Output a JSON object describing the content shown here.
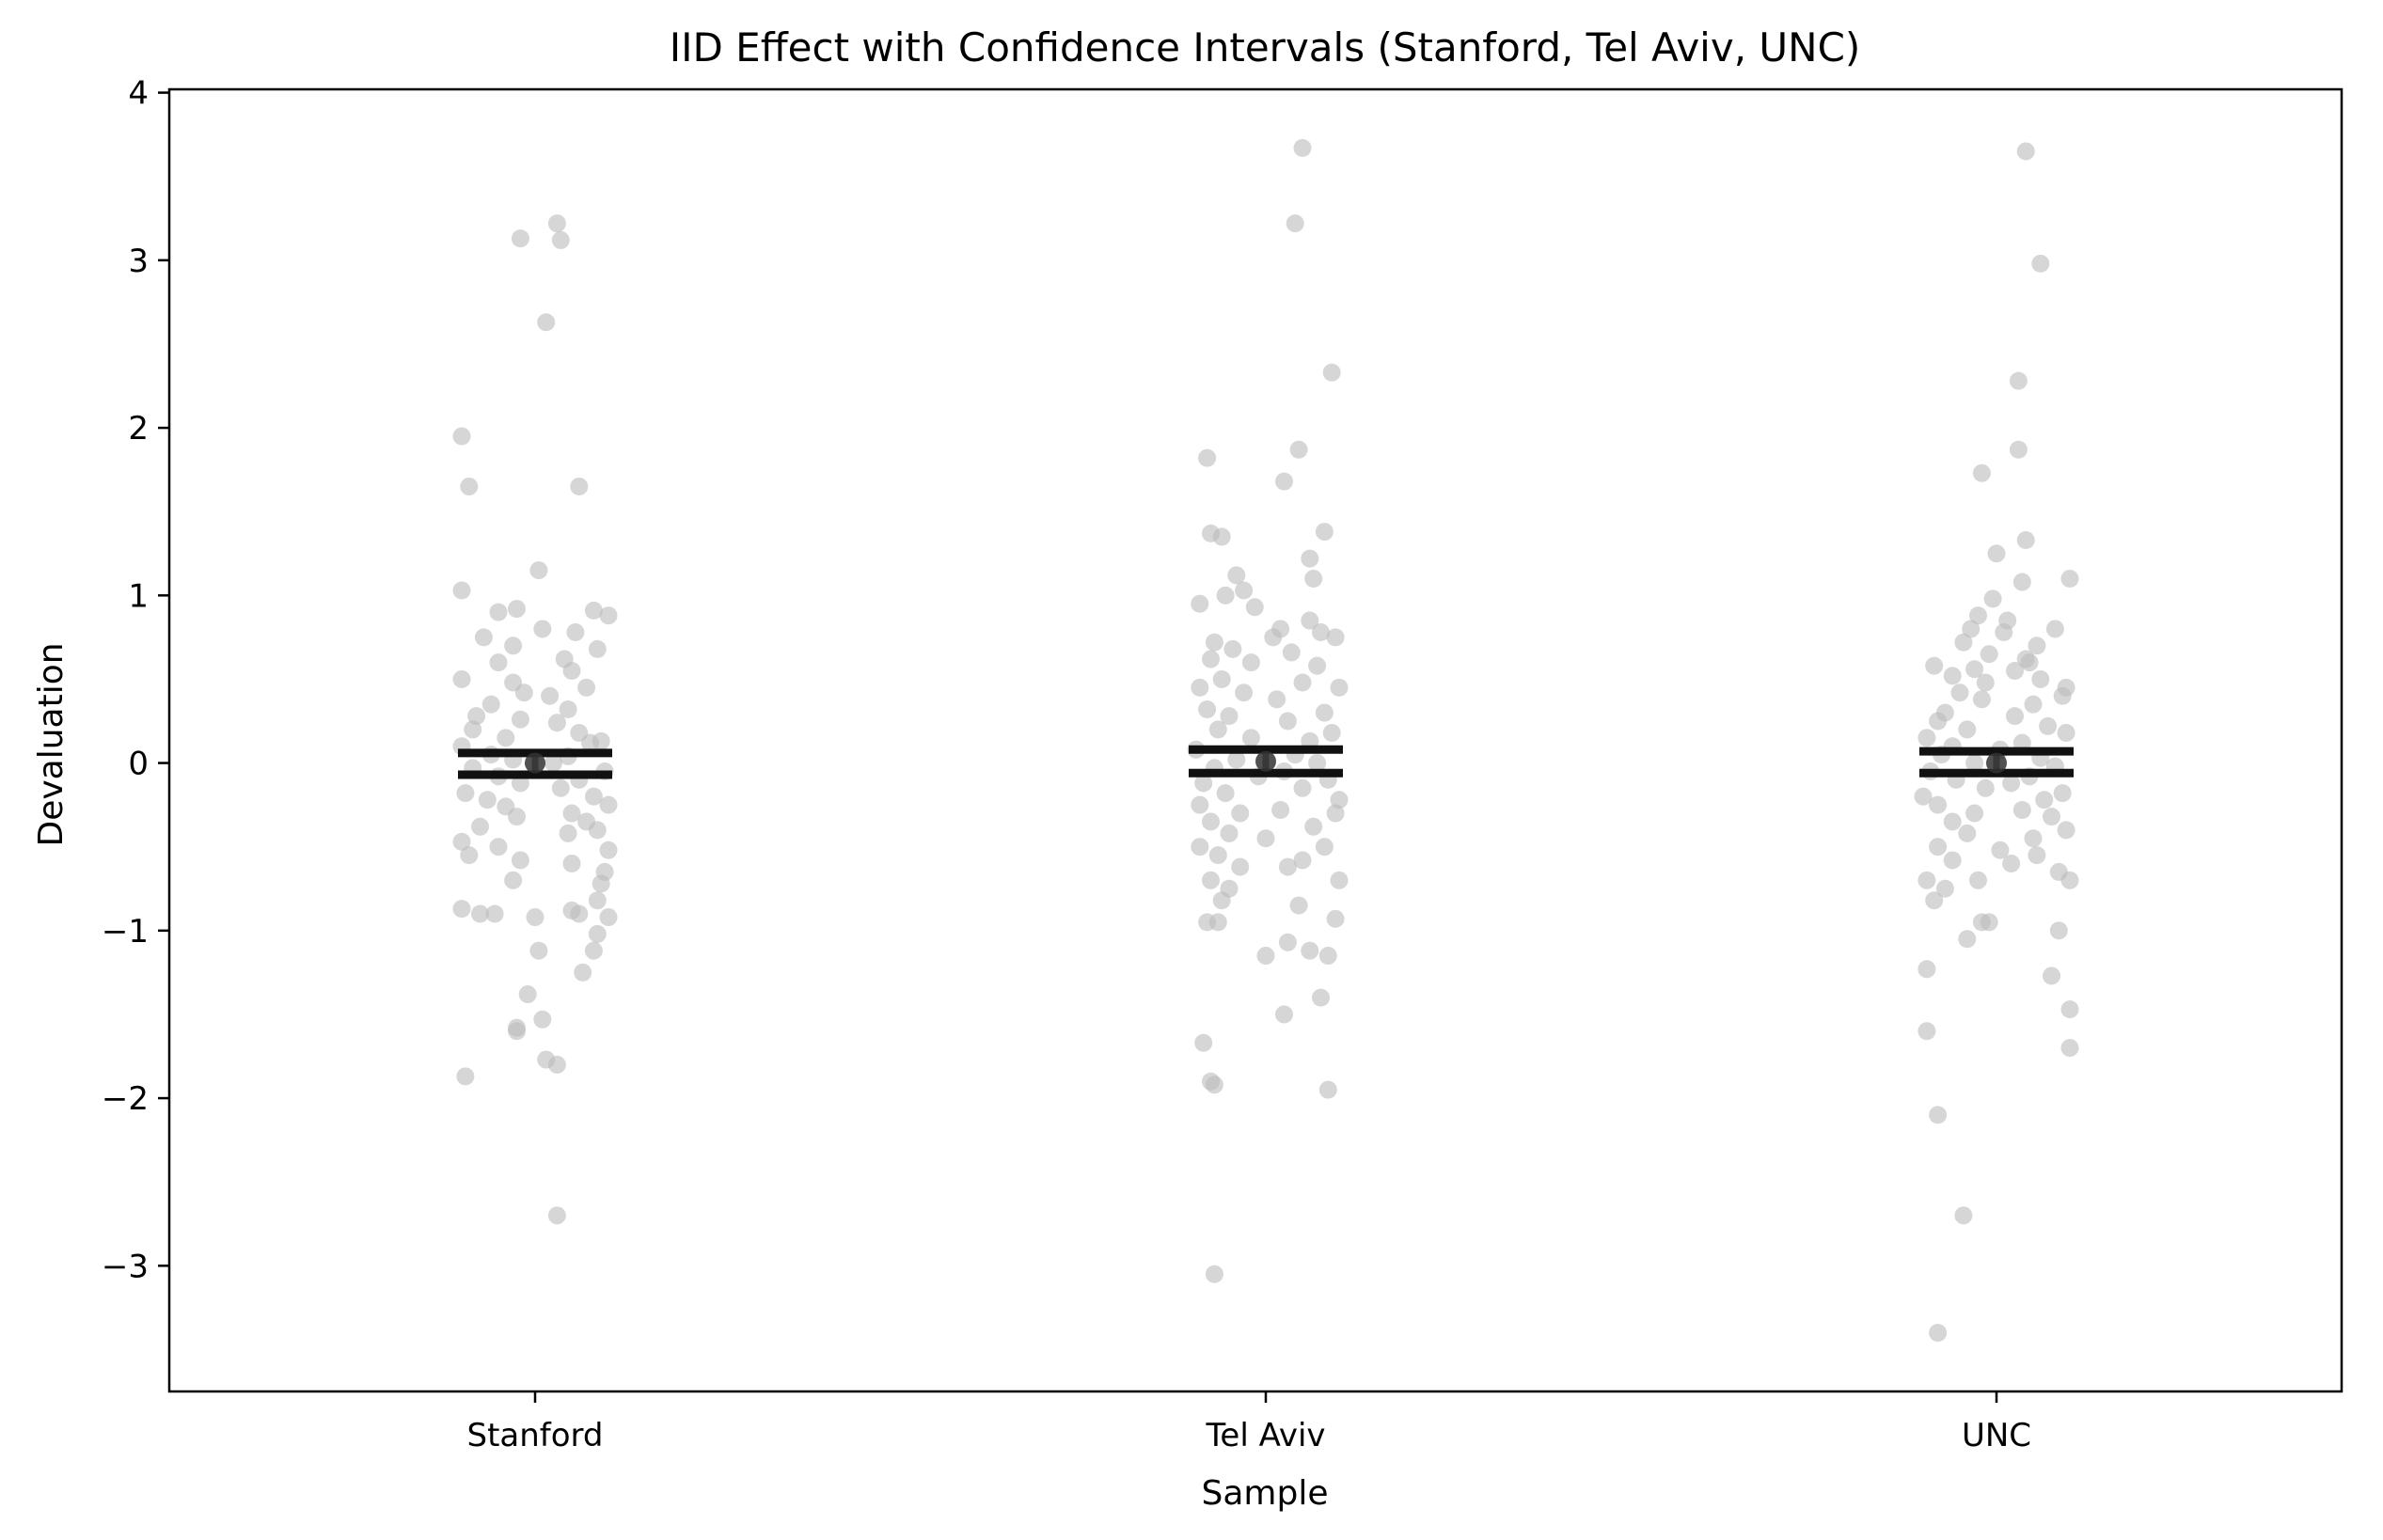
{
  "chart_data": {
    "type": "scatter",
    "title": "IID Effect with Confidence Intervals (Stanford, Tel Aviv, UNC)",
    "xlabel": "Sample",
    "ylabel": "Devaluation",
    "categories": [
      "Stanford",
      "Tel Aviv",
      "UNC"
    ],
    "y_ticks": [
      {
        "value": -3,
        "label": "−3"
      },
      {
        "value": -2,
        "label": "−2"
      },
      {
        "value": -1,
        "label": "−1"
      },
      {
        "value": 0,
        "label": "0"
      },
      {
        "value": 1,
        "label": "1"
      },
      {
        "value": 2,
        "label": "2"
      },
      {
        "value": 3,
        "label": "3"
      },
      {
        "value": 4,
        "label": "4"
      }
    ],
    "ylim": [
      -3.75,
      4.02
    ],
    "grid": false,
    "point_color": "#bdbdbd",
    "summary_color": "#111111",
    "series": [
      {
        "category": "Stanford",
        "mean": 0.0,
        "ci": [
          -0.07,
          0.06
        ],
        "points": [
          {
            "dx": -0.1,
            "y": 1.95
          },
          {
            "dx": -0.09,
            "y": 1.65
          },
          {
            "dx": 0.06,
            "y": 1.65
          },
          {
            "dx": -0.02,
            "y": 3.13
          },
          {
            "dx": 0.03,
            "y": 3.22
          },
          {
            "dx": 0.035,
            "y": 3.12
          },
          {
            "dx": 0.015,
            "y": 2.63
          },
          {
            "dx": -0.1,
            "y": 1.03
          },
          {
            "dx": 0.005,
            "y": 1.15
          },
          {
            "dx": 0.08,
            "y": 0.91
          },
          {
            "dx": 0.1,
            "y": 0.88
          },
          {
            "dx": -0.05,
            "y": 0.9
          },
          {
            "dx": -0.025,
            "y": 0.92
          },
          {
            "dx": 0.01,
            "y": 0.8
          },
          {
            "dx": 0.055,
            "y": 0.78
          },
          {
            "dx": -0.07,
            "y": 0.75
          },
          {
            "dx": 0.085,
            "y": 0.68
          },
          {
            "dx": -0.03,
            "y": 0.7
          },
          {
            "dx": 0.04,
            "y": 0.62
          },
          {
            "dx": -0.05,
            "y": 0.6
          },
          {
            "dx": 0.05,
            "y": 0.55
          },
          {
            "dx": -0.1,
            "y": 0.5
          },
          {
            "dx": -0.03,
            "y": 0.48
          },
          {
            "dx": 0.07,
            "y": 0.45
          },
          {
            "dx": -0.015,
            "y": 0.42
          },
          {
            "dx": 0.02,
            "y": 0.4
          },
          {
            "dx": -0.06,
            "y": 0.35
          },
          {
            "dx": 0.045,
            "y": 0.32
          },
          {
            "dx": -0.08,
            "y": 0.28
          },
          {
            "dx": -0.02,
            "y": 0.26
          },
          {
            "dx": 0.03,
            "y": 0.24
          },
          {
            "dx": -0.085,
            "y": 0.2
          },
          {
            "dx": 0.06,
            "y": 0.18
          },
          {
            "dx": -0.04,
            "y": 0.15
          },
          {
            "dx": 0.09,
            "y": 0.13
          },
          {
            "dx": -0.1,
            "y": 0.1
          },
          {
            "dx": 0.075,
            "y": 0.12
          },
          {
            "dx": -0.06,
            "y": 0.05
          },
          {
            "dx": 0.045,
            "y": 0.04
          },
          {
            "dx": -0.03,
            "y": 0.02
          },
          {
            "dx": 0.025,
            "y": 0.0
          },
          {
            "dx": -0.085,
            "y": -0.03
          },
          {
            "dx": 0.095,
            "y": -0.05
          },
          {
            "dx": -0.05,
            "y": -0.08
          },
          {
            "dx": 0.06,
            "y": -0.1
          },
          {
            "dx": -0.02,
            "y": -0.12
          },
          {
            "dx": 0.035,
            "y": -0.15
          },
          {
            "dx": -0.095,
            "y": -0.18
          },
          {
            "dx": 0.08,
            "y": -0.2
          },
          {
            "dx": -0.065,
            "y": -0.22
          },
          {
            "dx": 0.1,
            "y": -0.25
          },
          {
            "dx": -0.04,
            "y": -0.26
          },
          {
            "dx": 0.05,
            "y": -0.3
          },
          {
            "dx": -0.025,
            "y": -0.32
          },
          {
            "dx": 0.07,
            "y": -0.35
          },
          {
            "dx": -0.075,
            "y": -0.38
          },
          {
            "dx": 0.085,
            "y": -0.4
          },
          {
            "dx": 0.045,
            "y": -0.42
          },
          {
            "dx": -0.1,
            "y": -0.47
          },
          {
            "dx": -0.05,
            "y": -0.5
          },
          {
            "dx": 0.1,
            "y": -0.52
          },
          {
            "dx": -0.09,
            "y": -0.55
          },
          {
            "dx": -0.02,
            "y": -0.58
          },
          {
            "dx": 0.05,
            "y": -0.6
          },
          {
            "dx": 0.095,
            "y": -0.65
          },
          {
            "dx": -0.03,
            "y": -0.7
          },
          {
            "dx": 0.09,
            "y": -0.72
          },
          {
            "dx": 0.085,
            "y": -0.82
          },
          {
            "dx": -0.1,
            "y": -0.87
          },
          {
            "dx": -0.075,
            "y": -0.9
          },
          {
            "dx": -0.055,
            "y": -0.9
          },
          {
            "dx": 0.05,
            "y": -0.88
          },
          {
            "dx": 0.06,
            "y": -0.9
          },
          {
            "dx": 0.1,
            "y": -0.92
          },
          {
            "dx": 0.0,
            "y": -0.92
          },
          {
            "dx": 0.085,
            "y": -1.02
          },
          {
            "dx": 0.08,
            "y": -1.12
          },
          {
            "dx": 0.005,
            "y": -1.12
          },
          {
            "dx": 0.065,
            "y": -1.25
          },
          {
            "dx": -0.01,
            "y": -1.38
          },
          {
            "dx": 0.01,
            "y": -1.53
          },
          {
            "dx": -0.025,
            "y": -1.58
          },
          {
            "dx": -0.025,
            "y": -1.6
          },
          {
            "dx": 0.015,
            "y": -1.77
          },
          {
            "dx": 0.03,
            "y": -1.8
          },
          {
            "dx": -0.095,
            "y": -1.87
          },
          {
            "dx": 0.03,
            "y": -2.7
          }
        ]
      },
      {
        "category": "Tel Aviv",
        "mean": 0.01,
        "ci": [
          -0.06,
          0.08
        ],
        "points": [
          {
            "dx": 0.05,
            "y": 3.67
          },
          {
            "dx": 0.04,
            "y": 3.22
          },
          {
            "dx": 0.09,
            "y": 2.33
          },
          {
            "dx": -0.08,
            "y": 1.82
          },
          {
            "dx": 0.045,
            "y": 1.87
          },
          {
            "dx": 0.025,
            "y": 1.68
          },
          {
            "dx": -0.075,
            "y": 1.37
          },
          {
            "dx": -0.06,
            "y": 1.35
          },
          {
            "dx": 0.08,
            "y": 1.38
          },
          {
            "dx": 0.06,
            "y": 1.22
          },
          {
            "dx": -0.04,
            "y": 1.12
          },
          {
            "dx": 0.065,
            "y": 1.1
          },
          {
            "dx": -0.03,
            "y": 1.03
          },
          {
            "dx": -0.055,
            "y": 1.0
          },
          {
            "dx": -0.09,
            "y": 0.95
          },
          {
            "dx": -0.015,
            "y": 0.93
          },
          {
            "dx": 0.06,
            "y": 0.85
          },
          {
            "dx": 0.02,
            "y": 0.8
          },
          {
            "dx": 0.075,
            "y": 0.78
          },
          {
            "dx": -0.07,
            "y": 0.72
          },
          {
            "dx": 0.095,
            "y": 0.75
          },
          {
            "dx": 0.01,
            "y": 0.75
          },
          {
            "dx": -0.045,
            "y": 0.68
          },
          {
            "dx": 0.035,
            "y": 0.66
          },
          {
            "dx": -0.075,
            "y": 0.62
          },
          {
            "dx": -0.02,
            "y": 0.6
          },
          {
            "dx": 0.07,
            "y": 0.58
          },
          {
            "dx": -0.06,
            "y": 0.5
          },
          {
            "dx": 0.05,
            "y": 0.48
          },
          {
            "dx": -0.09,
            "y": 0.45
          },
          {
            "dx": 0.1,
            "y": 0.45
          },
          {
            "dx": -0.03,
            "y": 0.42
          },
          {
            "dx": 0.015,
            "y": 0.38
          },
          {
            "dx": -0.08,
            "y": 0.32
          },
          {
            "dx": 0.08,
            "y": 0.3
          },
          {
            "dx": -0.05,
            "y": 0.28
          },
          {
            "dx": 0.03,
            "y": 0.25
          },
          {
            "dx": -0.065,
            "y": 0.2
          },
          {
            "dx": 0.09,
            "y": 0.18
          },
          {
            "dx": -0.02,
            "y": 0.15
          },
          {
            "dx": 0.06,
            "y": 0.13
          },
          {
            "dx": -0.095,
            "y": 0.08
          },
          {
            "dx": 0.04,
            "y": 0.05
          },
          {
            "dx": -0.04,
            "y": 0.02
          },
          {
            "dx": 0.07,
            "y": 0.0
          },
          {
            "dx": -0.07,
            "y": -0.03
          },
          {
            "dx": 0.025,
            "y": -0.05
          },
          {
            "dx": -0.01,
            "y": -0.08
          },
          {
            "dx": 0.085,
            "y": -0.1
          },
          {
            "dx": -0.085,
            "y": -0.12
          },
          {
            "dx": 0.05,
            "y": -0.15
          },
          {
            "dx": -0.055,
            "y": -0.18
          },
          {
            "dx": 0.1,
            "y": -0.22
          },
          {
            "dx": -0.09,
            "y": -0.25
          },
          {
            "dx": 0.02,
            "y": -0.28
          },
          {
            "dx": -0.035,
            "y": -0.3
          },
          {
            "dx": 0.095,
            "y": -0.3
          },
          {
            "dx": -0.075,
            "y": -0.35
          },
          {
            "dx": 0.065,
            "y": -0.38
          },
          {
            "dx": -0.05,
            "y": -0.42
          },
          {
            "dx": 0.0,
            "y": -0.45
          },
          {
            "dx": -0.09,
            "y": -0.5
          },
          {
            "dx": 0.08,
            "y": -0.5
          },
          {
            "dx": -0.065,
            "y": -0.55
          },
          {
            "dx": 0.05,
            "y": -0.58
          },
          {
            "dx": -0.035,
            "y": -0.62
          },
          {
            "dx": 0.03,
            "y": -0.62
          },
          {
            "dx": -0.075,
            "y": -0.7
          },
          {
            "dx": 0.1,
            "y": -0.7
          },
          {
            "dx": -0.05,
            "y": -0.75
          },
          {
            "dx": -0.06,
            "y": -0.82
          },
          {
            "dx": 0.045,
            "y": -0.85
          },
          {
            "dx": 0.095,
            "y": -0.93
          },
          {
            "dx": -0.08,
            "y": -0.95
          },
          {
            "dx": -0.065,
            "y": -0.95
          },
          {
            "dx": 0.03,
            "y": -1.07
          },
          {
            "dx": 0.06,
            "y": -1.12
          },
          {
            "dx": 0.085,
            "y": -1.15
          },
          {
            "dx": 0.0,
            "y": -1.15
          },
          {
            "dx": 0.075,
            "y": -1.4
          },
          {
            "dx": 0.025,
            "y": -1.5
          },
          {
            "dx": -0.085,
            "y": -1.67
          },
          {
            "dx": -0.075,
            "y": -1.9
          },
          {
            "dx": -0.07,
            "y": -1.92
          },
          {
            "dx": 0.085,
            "y": -1.95
          },
          {
            "dx": -0.07,
            "y": -3.05
          }
        ]
      },
      {
        "category": "UNC",
        "mean": 0.0,
        "ci": [
          -0.06,
          0.07
        ],
        "points": [
          {
            "dx": 0.04,
            "y": 3.65
          },
          {
            "dx": 0.06,
            "y": 2.98
          },
          {
            "dx": 0.03,
            "y": 2.28
          },
          {
            "dx": 0.03,
            "y": 1.87
          },
          {
            "dx": -0.02,
            "y": 1.73
          },
          {
            "dx": 0.04,
            "y": 1.33
          },
          {
            "dx": 0.0,
            "y": 1.25
          },
          {
            "dx": 0.1,
            "y": 1.1
          },
          {
            "dx": 0.035,
            "y": 1.08
          },
          {
            "dx": -0.005,
            "y": 0.98
          },
          {
            "dx": -0.025,
            "y": 0.88
          },
          {
            "dx": 0.015,
            "y": 0.85
          },
          {
            "dx": 0.08,
            "y": 0.8
          },
          {
            "dx": -0.035,
            "y": 0.8
          },
          {
            "dx": 0.01,
            "y": 0.78
          },
          {
            "dx": -0.045,
            "y": 0.72
          },
          {
            "dx": 0.055,
            "y": 0.7
          },
          {
            "dx": -0.01,
            "y": 0.65
          },
          {
            "dx": 0.04,
            "y": 0.62
          },
          {
            "dx": 0.045,
            "y": 0.6
          },
          {
            "dx": -0.085,
            "y": 0.58
          },
          {
            "dx": -0.03,
            "y": 0.56
          },
          {
            "dx": 0.025,
            "y": 0.55
          },
          {
            "dx": -0.06,
            "y": 0.52
          },
          {
            "dx": 0.06,
            "y": 0.5
          },
          {
            "dx": -0.015,
            "y": 0.48
          },
          {
            "dx": 0.095,
            "y": 0.45
          },
          {
            "dx": -0.05,
            "y": 0.42
          },
          {
            "dx": 0.09,
            "y": 0.4
          },
          {
            "dx": -0.02,
            "y": 0.38
          },
          {
            "dx": 0.05,
            "y": 0.35
          },
          {
            "dx": -0.07,
            "y": 0.3
          },
          {
            "dx": 0.025,
            "y": 0.28
          },
          {
            "dx": -0.08,
            "y": 0.25
          },
          {
            "dx": 0.07,
            "y": 0.22
          },
          {
            "dx": -0.04,
            "y": 0.2
          },
          {
            "dx": 0.095,
            "y": 0.18
          },
          {
            "dx": -0.095,
            "y": 0.15
          },
          {
            "dx": 0.035,
            "y": 0.12
          },
          {
            "dx": -0.06,
            "y": 0.1
          },
          {
            "dx": 0.005,
            "y": 0.08
          },
          {
            "dx": -0.075,
            "y": 0.05
          },
          {
            "dx": 0.06,
            "y": 0.03
          },
          {
            "dx": -0.03,
            "y": 0.0
          },
          {
            "dx": 0.08,
            "y": -0.02
          },
          {
            "dx": -0.09,
            "y": -0.05
          },
          {
            "dx": 0.045,
            "y": -0.08
          },
          {
            "dx": -0.055,
            "y": -0.1
          },
          {
            "dx": 0.02,
            "y": -0.12
          },
          {
            "dx": -0.015,
            "y": -0.15
          },
          {
            "dx": 0.09,
            "y": -0.18
          },
          {
            "dx": -0.1,
            "y": -0.2
          },
          {
            "dx": 0.065,
            "y": -0.22
          },
          {
            "dx": -0.08,
            "y": -0.25
          },
          {
            "dx": 0.035,
            "y": -0.28
          },
          {
            "dx": -0.03,
            "y": -0.3
          },
          {
            "dx": 0.075,
            "y": -0.32
          },
          {
            "dx": -0.06,
            "y": -0.35
          },
          {
            "dx": 0.095,
            "y": -0.4
          },
          {
            "dx": -0.04,
            "y": -0.42
          },
          {
            "dx": 0.05,
            "y": -0.45
          },
          {
            "dx": -0.08,
            "y": -0.5
          },
          {
            "dx": 0.005,
            "y": -0.52
          },
          {
            "dx": 0.055,
            "y": -0.55
          },
          {
            "dx": -0.06,
            "y": -0.58
          },
          {
            "dx": 0.02,
            "y": -0.6
          },
          {
            "dx": 0.085,
            "y": -0.65
          },
          {
            "dx": -0.095,
            "y": -0.7
          },
          {
            "dx": -0.025,
            "y": -0.7
          },
          {
            "dx": 0.1,
            "y": -0.7
          },
          {
            "dx": -0.07,
            "y": -0.75
          },
          {
            "dx": -0.085,
            "y": -0.82
          },
          {
            "dx": -0.01,
            "y": -0.95
          },
          {
            "dx": -0.02,
            "y": -0.95
          },
          {
            "dx": 0.085,
            "y": -1.0
          },
          {
            "dx": -0.04,
            "y": -1.05
          },
          {
            "dx": -0.095,
            "y": -1.23
          },
          {
            "dx": 0.075,
            "y": -1.27
          },
          {
            "dx": 0.1,
            "y": -1.47
          },
          {
            "dx": -0.095,
            "y": -1.6
          },
          {
            "dx": 0.1,
            "y": -1.7
          },
          {
            "dx": -0.08,
            "y": -2.1
          },
          {
            "dx": -0.045,
            "y": -2.7
          },
          {
            "dx": -0.08,
            "y": -3.4
          }
        ]
      }
    ]
  }
}
